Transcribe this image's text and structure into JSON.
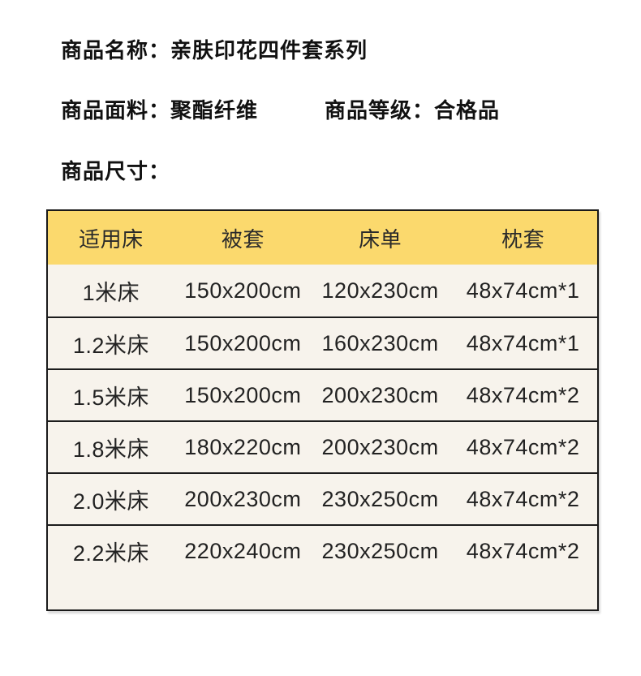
{
  "product_info": {
    "name_label": "商品名称：",
    "name_value": "亲肤印花四件套系列",
    "fabric_label": "商品面料：",
    "fabric_value": "聚酯纤维",
    "grade_label": "商品等级：",
    "grade_value": "合格品",
    "size_section_title": "商品尺寸："
  },
  "size_table": {
    "columns": [
      "适用床",
      "被套",
      "床单",
      "枕套"
    ],
    "rows": [
      [
        "1米床",
        "150x200cm",
        "120x230cm",
        "48x74cm*1"
      ],
      [
        "1.2米床",
        "150x200cm",
        "160x230cm",
        "48x74cm*1"
      ],
      [
        "1.5米床",
        "150x200cm",
        "200x230cm",
        "48x74cm*2"
      ],
      [
        "1.8米床",
        "180x220cm",
        "200x230cm",
        "48x74cm*2"
      ],
      [
        "2.0米床",
        "200x230cm",
        "230x250cm",
        "48x74cm*2"
      ],
      [
        "2.2米床",
        "220x240cm",
        "230x250cm",
        "48x74cm*2"
      ]
    ],
    "colors": {
      "header_bg": "#fbd96d",
      "body_bg": "#f7f3ec",
      "border": "#1a1a1a",
      "text": "#222222",
      "page_bg": "#ffffff"
    }
  }
}
